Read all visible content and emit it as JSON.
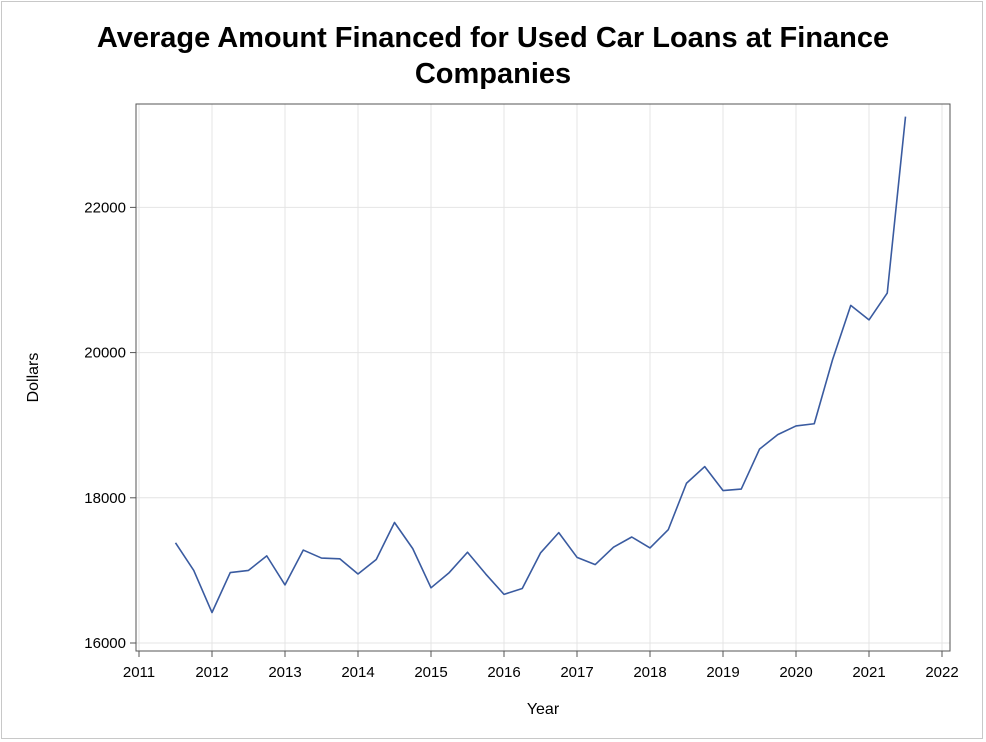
{
  "chart_data": {
    "type": "line",
    "title_line1": "Average Amount Financed for Used Car Loans at Finance",
    "title_line2": "Companies",
    "xlabel": "Year",
    "ylabel": "Dollars",
    "xlim": [
      2011,
      2022
    ],
    "ylim": [
      16000,
      23300
    ],
    "x_ticks": [
      2011,
      2012,
      2013,
      2014,
      2015,
      2016,
      2017,
      2018,
      2019,
      2020,
      2021,
      2022
    ],
    "y_ticks": [
      16000,
      18000,
      20000,
      22000
    ],
    "grid": true,
    "line_color": "#3a5ba0",
    "series": [
      {
        "x": [
          2011.5,
          2011.75,
          2012.0,
          2012.25,
          2012.5,
          2012.75,
          2013.0,
          2013.25,
          2013.5,
          2013.75,
          2014.0,
          2014.25,
          2014.5,
          2014.75,
          2015.0,
          2015.25,
          2015.5,
          2015.75,
          2016.0,
          2016.25,
          2016.5,
          2016.75,
          2017.0,
          2017.25,
          2017.5,
          2017.75,
          2018.0,
          2018.25,
          2018.5,
          2018.75,
          2019.0,
          2019.25,
          2019.5,
          2019.75,
          2020.0,
          2020.25,
          2020.5,
          2020.75,
          2021.0,
          2021.25,
          2021.5
        ],
        "y": [
          17380,
          17000,
          16420,
          16970,
          17000,
          17200,
          16800,
          17280,
          17170,
          17160,
          16950,
          17150,
          17660,
          17300,
          16760,
          16970,
          17250,
          16950,
          16670,
          16750,
          17240,
          17520,
          17180,
          17080,
          17320,
          17460,
          17310,
          17560,
          18200,
          18430,
          18100,
          18120,
          18670,
          18870,
          18990,
          19020,
          19900,
          20650,
          20450,
          20820,
          23250
        ]
      }
    ]
  }
}
